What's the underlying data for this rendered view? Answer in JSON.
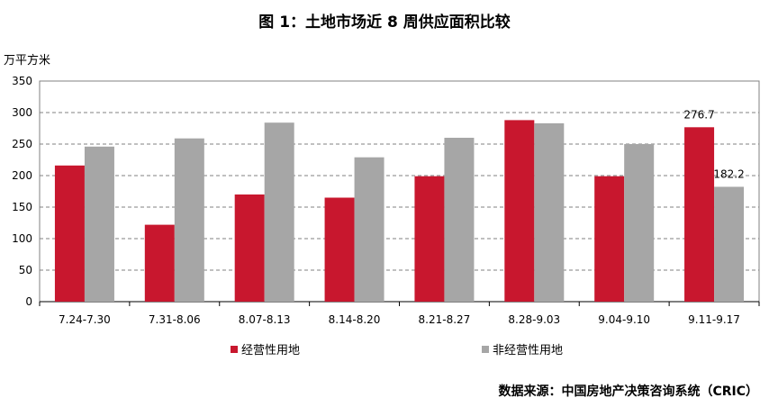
{
  "title": "图 1：土地市场近 8 周供应面积比较",
  "unit": "万平方米",
  "source": "数据来源：中国房地产决策咨询系统（CRIC）",
  "chart_data": {
    "type": "bar",
    "categories": [
      "7.24-7.30",
      "7.31-8.06",
      "8.07-8.13",
      "8.14-8.20",
      "8.21-8.27",
      "8.28-9.03",
      "9.04-9.10",
      "9.11-9.17"
    ],
    "series": [
      {
        "name": "经营性用地",
        "color": "#c8172e",
        "values": [
          216,
          122,
          170,
          165,
          199,
          288,
          199,
          276.7
        ]
      },
      {
        "name": "非经营性用地",
        "color": "#a6a6a6",
        "values": [
          246,
          259,
          284,
          229,
          260,
          283,
          250,
          182.2
        ]
      }
    ],
    "ylim": [
      0,
      350
    ],
    "yticks": [
      0,
      50,
      100,
      150,
      200,
      250,
      300,
      350
    ],
    "grid": "dashed horizontal",
    "legend": "bottom",
    "data_labels": [
      {
        "series": 0,
        "index": 7,
        "text": "276.7"
      },
      {
        "series": 1,
        "index": 7,
        "text": "182.2"
      }
    ]
  }
}
